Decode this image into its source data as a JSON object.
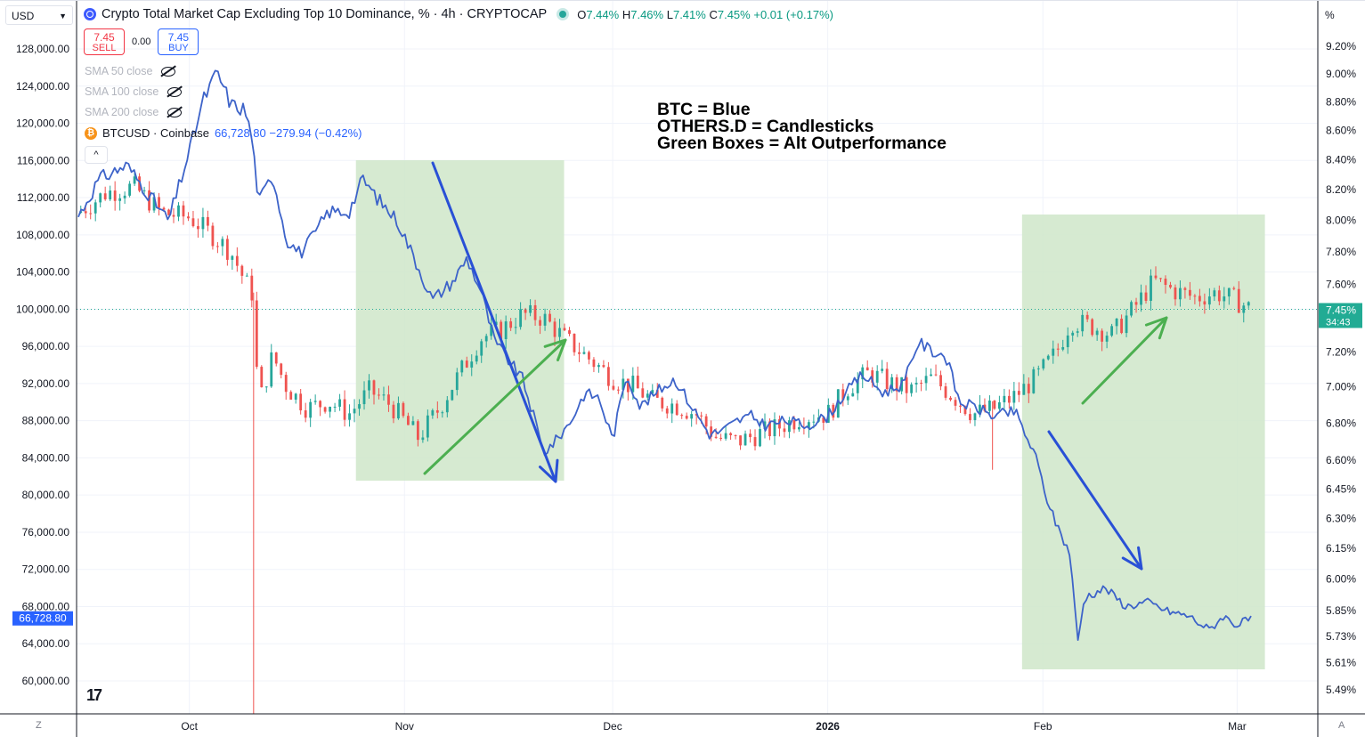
{
  "header": {
    "title": "Crypto Total Market Cap Excluding Top 10 Dominance, % · 4h · CRYPTOCAP",
    "ohlc": {
      "o_label": "O",
      "o": "7.44%",
      "h_label": "H",
      "h": "7.46%",
      "l_label": "L",
      "l": "7.41%",
      "c_label": "C",
      "c": "7.45%",
      "change": "+0.01 (+0.17%)"
    },
    "sell_price": "7.45",
    "sell_label": "SELL",
    "spread": "0.00",
    "buy_price": "7.45",
    "buy_label": "BUY",
    "indicators": [
      "SMA 50 close",
      "SMA 100 close",
      "SMA 200 close"
    ],
    "btc_symbol": "BTCUSD · Coinbase",
    "btc_values": "66,728.80 −279.94 (−0.42%)",
    "collapse_icon": "^"
  },
  "left_currency": "USD",
  "right_unit": "%",
  "bottom_left": "Z",
  "bottom_right": "A",
  "tv_logo": "17",
  "annotation": {
    "line1": "BTC = Blue",
    "line2": "OTHERS.D = Candlesticks",
    "line3": "Green Boxes = Alt Outperformance"
  },
  "colors": {
    "btc_line": "#3d63c9",
    "candle_up": "#26a69a",
    "candle_down": "#ef5350",
    "box_fill": "#cfe6c9",
    "arrow_blue": "#2950d6",
    "arrow_green": "#4caf50",
    "current_price": "#22ab94",
    "btc_label": "#2962ff"
  },
  "chart_data": {
    "type": "line",
    "title": "Crypto Total Market Cap Excluding Top 10 Dominance, % · 4h · CRYPTOCAP",
    "x_ticks": [
      "Oct",
      "Nov",
      "Dec",
      "2026",
      "Feb",
      "Mar"
    ],
    "left_axis": {
      "unit": "USD",
      "ticks": [
        "128,000.00",
        "124,000.00",
        "120,000.00",
        "116,000.00",
        "112,000.00",
        "108,000.00",
        "104,000.00",
        "100,000.00",
        "96,000.00",
        "92,000.00",
        "88,000.00",
        "84,000.00",
        "80,000.00",
        "76,000.00",
        "72,000.00",
        "68,000.00",
        "64,000.00",
        "60,000.00"
      ],
      "ylim": [
        57000,
        131500
      ],
      "current_label": "66,728.80",
      "current_value": 66728.8
    },
    "right_axis": {
      "unit": "%",
      "ticks": [
        "9.20%",
        "9.00%",
        "8.80%",
        "8.60%",
        "8.40%",
        "8.20%",
        "8.00%",
        "7.80%",
        "7.60%",
        "7.20%",
        "7.00%",
        "6.80%",
        "6.60%",
        "6.45%",
        "6.30%",
        "6.15%",
        "6.00%",
        "5.85%",
        "5.73%",
        "5.61%",
        "5.49%"
      ],
      "scale": "log",
      "current_label": "7.45%",
      "current_value": 7.45,
      "countdown": "34:43"
    },
    "series": [
      {
        "name": "BTCUSD · Coinbase",
        "kind": "line",
        "axis": "left",
        "points": [
          [
            "Sep 15",
            110000
          ],
          [
            "Sep 18",
            114000
          ],
          [
            "Sep 22",
            115500
          ],
          [
            "Sep 25",
            112500
          ],
          [
            "Sep 28",
            109500
          ],
          [
            "Oct 1",
            117000
          ],
          [
            "Oct 3",
            122500
          ],
          [
            "Oct 5",
            125500
          ],
          [
            "Oct 7",
            122000
          ],
          [
            "Oct 9",
            121500
          ],
          [
            "Oct 10",
            118500
          ],
          [
            "Oct 11",
            111500
          ],
          [
            "Oct 13",
            114500
          ],
          [
            "Oct 15",
            107500
          ],
          [
            "Oct 17",
            106000
          ],
          [
            "Oct 19",
            108000
          ],
          [
            "Oct 21",
            110500
          ],
          [
            "Oct 24",
            110500
          ],
          [
            "Oct 26",
            114000
          ],
          [
            "Oct 28",
            112000
          ],
          [
            "Oct 31",
            109500
          ],
          [
            "Nov 3",
            104500
          ],
          [
            "Nov 5",
            101000
          ],
          [
            "Nov 8",
            103000
          ],
          [
            "Nov 10",
            105500
          ],
          [
            "Nov 12",
            102000
          ],
          [
            "Nov 14",
            96500
          ],
          [
            "Nov 16",
            94500
          ],
          [
            "Nov 18",
            92500
          ],
          [
            "Nov 20",
            87500
          ],
          [
            "Nov 21",
            84500
          ],
          [
            "Nov 23",
            86000
          ],
          [
            "Nov 25",
            88000
          ],
          [
            "Nov 27",
            91000
          ],
          [
            "Nov 29",
            90500
          ],
          [
            "Dec 1",
            86000
          ],
          [
            "Dec 3",
            93000
          ],
          [
            "Dec 5",
            89500
          ],
          [
            "Dec 8",
            91500
          ],
          [
            "Dec 10",
            92500
          ],
          [
            "Dec 12",
            90000
          ],
          [
            "Dec 15",
            86500
          ],
          [
            "Dec 17",
            87000
          ],
          [
            "Dec 19",
            88000
          ],
          [
            "Dec 21",
            88500
          ],
          [
            "Dec 23",
            87500
          ],
          [
            "Dec 26",
            88000
          ],
          [
            "Dec 29",
            87500
          ],
          [
            "Jan 1",
            88500
          ],
          [
            "Jan 3",
            90500
          ],
          [
            "Jan 6",
            93000
          ],
          [
            "Jan 9",
            91000
          ],
          [
            "Jan 12",
            92000
          ],
          [
            "Jan 14",
            96500
          ],
          [
            "Jan 16",
            95500
          ],
          [
            "Jan 18",
            95000
          ],
          [
            "Jan 20",
            90000
          ],
          [
            "Jan 22",
            89500
          ],
          [
            "Jan 25",
            88500
          ],
          [
            "Jan 28",
            89000
          ],
          [
            "Jan 31",
            84000
          ],
          [
            "Feb 2",
            78500
          ],
          [
            "Feb 5",
            73500
          ],
          [
            "Feb 6",
            64000
          ],
          [
            "Feb 7",
            69000
          ],
          [
            "Feb 10",
            70000
          ],
          [
            "Feb 13",
            68000
          ],
          [
            "Feb 16",
            68500
          ],
          [
            "Feb 19",
            67500
          ],
          [
            "Feb 22",
            67000
          ],
          [
            "Feb 25",
            65500
          ],
          [
            "Feb 27",
            67000
          ],
          [
            "Mar 1",
            66000
          ],
          [
            "Mar 3",
            66728.8
          ]
        ]
      },
      {
        "name": "OTHERS.D",
        "kind": "candlestick",
        "axis": "right",
        "points": [
          [
            "Sep 15",
            8.05
          ],
          [
            "Sep 19",
            8.18
          ],
          [
            "Sep 23",
            8.22
          ],
          [
            "Sep 27",
            8.05
          ],
          [
            "Oct 1",
            8.02
          ],
          [
            "Oct 4",
            7.92
          ],
          [
            "Oct 7",
            7.8
          ],
          [
            "Oct 9",
            7.62
          ],
          [
            "Oct 10",
            7.55
          ],
          [
            "Oct 11",
            6.9
          ],
          [
            "Oct 13",
            7.18
          ],
          [
            "Oct 15",
            7.0
          ],
          [
            "Oct 18",
            6.88
          ],
          [
            "Oct 21",
            6.92
          ],
          [
            "Oct 24",
            6.85
          ],
          [
            "Oct 27",
            6.98
          ],
          [
            "Oct 30",
            6.9
          ],
          [
            "Nov 3",
            6.72
          ],
          [
            "Nov 6",
            6.88
          ],
          [
            "Nov 9",
            7.08
          ],
          [
            "Nov 12",
            7.28
          ],
          [
            "Nov 15",
            7.33
          ],
          [
            "Nov 18",
            7.42
          ],
          [
            "Nov 21",
            7.4
          ],
          [
            "Nov 24",
            7.28
          ],
          [
            "Nov 27",
            7.18
          ],
          [
            "Dec 1",
            7.05
          ],
          [
            "Dec 4",
            7.0
          ],
          [
            "Dec 7",
            6.92
          ],
          [
            "Dec 10",
            6.9
          ],
          [
            "Dec 13",
            6.85
          ],
          [
            "Dec 16",
            6.72
          ],
          [
            "Dec 19",
            6.7
          ],
          [
            "Dec 22",
            6.74
          ],
          [
            "Dec 25",
            6.78
          ],
          [
            "Dec 28",
            6.83
          ],
          [
            "Jan 1",
            6.85
          ],
          [
            "Jan 4",
            7.0
          ],
          [
            "Jan 7",
            7.08
          ],
          [
            "Jan 10",
            7.02
          ],
          [
            "Jan 13",
            6.98
          ],
          [
            "Jan 16",
            7.05
          ],
          [
            "Jan 19",
            6.95
          ],
          [
            "Jan 22",
            6.85
          ],
          [
            "Jan 25",
            6.88
          ],
          [
            "Jan 28",
            6.95
          ],
          [
            "Jan 31",
            7.05
          ],
          [
            "Feb 3",
            7.2
          ],
          [
            "Feb 5",
            7.38
          ],
          [
            "Feb 8",
            7.35
          ],
          [
            "Feb 11",
            7.3
          ],
          [
            "Feb 14",
            7.45
          ],
          [
            "Feb 17",
            7.62
          ],
          [
            "Feb 20",
            7.56
          ],
          [
            "Feb 23",
            7.52
          ],
          [
            "Feb 26",
            7.55
          ],
          [
            "Mar 1",
            7.5
          ],
          [
            "Mar 3",
            7.45
          ]
        ]
      }
    ],
    "highlight_boxes": [
      {
        "from": "Oct 25",
        "to": "Nov 24"
      },
      {
        "from": "Jan 29",
        "to": "Mar 5"
      }
    ],
    "grid": true,
    "legend": "top-left"
  }
}
